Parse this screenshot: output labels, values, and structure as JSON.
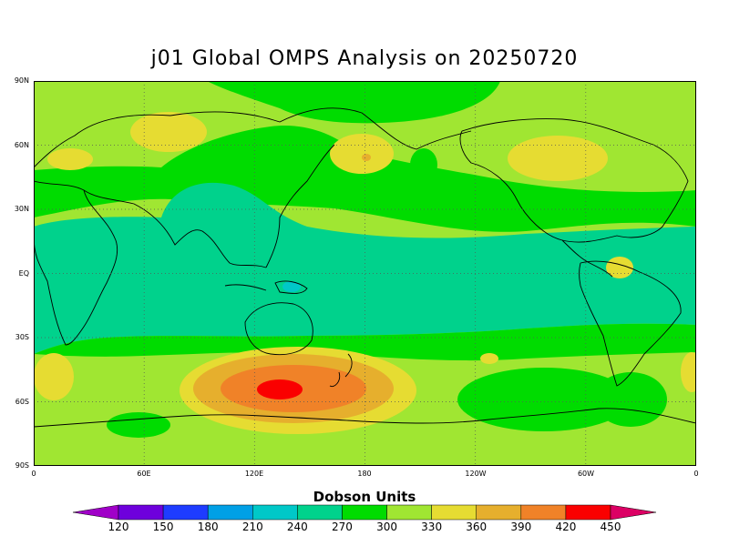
{
  "title": "j01 Global OMPS Analysis on 20250720",
  "lat_labels": [
    "90N",
    "60N",
    "30N",
    "EQ",
    "30S",
    "60S",
    "90S"
  ],
  "lon_labels": [
    "0",
    "60E",
    "120E",
    "180",
    "120W",
    "60W",
    "0"
  ],
  "colorbar": {
    "title": "Dobson Units",
    "labels": [
      "120",
      "150",
      "180",
      "210",
      "240",
      "270",
      "300",
      "330",
      "360",
      "390",
      "420",
      "450"
    ],
    "colors": [
      "#a000c8",
      "#6e00dc",
      "#1e3cff",
      "#00a0e6",
      "#00c8c8",
      "#00d28c",
      "#00dc00",
      "#a0e632",
      "#e6dc32",
      "#e6af2d",
      "#f08228",
      "#fa0000",
      "#dc0064"
    ]
  }
}
